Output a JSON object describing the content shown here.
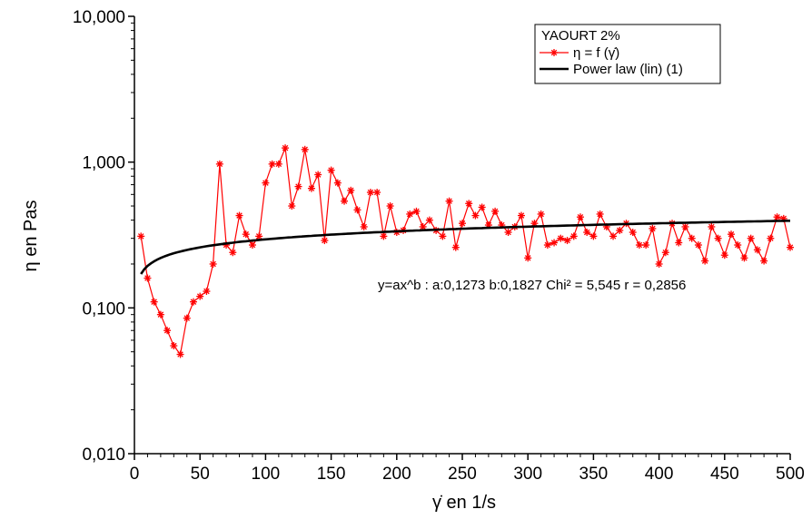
{
  "chart_data": {
    "type": "line",
    "scale_y": "log",
    "xlim": [
      0,
      500
    ],
    "ylim": [
      0.01,
      10
    ],
    "x_ticks": [
      0,
      50,
      100,
      150,
      200,
      250,
      300,
      350,
      400,
      450,
      500
    ],
    "x_tick_labels": [
      "0",
      "50",
      "100",
      "150",
      "200",
      "250",
      "300",
      "350",
      "400",
      "450",
      "500"
    ],
    "y_ticks": [
      0.01,
      0.1,
      1,
      10
    ],
    "y_tick_labels": [
      "0,010",
      "0,100",
      "1,000",
      "10,000"
    ],
    "xlabel": "γ̇ en 1/s",
    "ylabel": "η en Pas",
    "grid": false,
    "legend": {
      "title": "YAOURT 2%",
      "position": "top-right",
      "entries": [
        "η = f (γ̇)",
        "Power law (lin) (1)"
      ]
    },
    "annotation": "y=ax^b : a:0,1273 b:0,1827 Chi² = 5,545 r = 0,2856",
    "series": [
      {
        "name": "η = f (γ̇)",
        "color": "#ff0000",
        "marker": "asterisk",
        "x": [
          5,
          10,
          15,
          20,
          25,
          30,
          35,
          40,
          45,
          50,
          55,
          60,
          65,
          70,
          75,
          80,
          85,
          90,
          95,
          100,
          105,
          110,
          115,
          120,
          125,
          130,
          135,
          140,
          145,
          150,
          155,
          160,
          165,
          170,
          175,
          180,
          185,
          190,
          195,
          200,
          205,
          210,
          215,
          220,
          225,
          230,
          235,
          240,
          245,
          250,
          255,
          260,
          265,
          270,
          275,
          280,
          285,
          290,
          295,
          300,
          305,
          310,
          315,
          320,
          325,
          330,
          335,
          340,
          345,
          350,
          355,
          360,
          365,
          370,
          375,
          380,
          385,
          390,
          395,
          400,
          405,
          410,
          415,
          420,
          425,
          430,
          435,
          440,
          445,
          450,
          455,
          460,
          465,
          470,
          475,
          480,
          485,
          490,
          495,
          500
        ],
        "y": [
          0.31,
          0.16,
          0.11,
          0.09,
          0.07,
          0.055,
          0.048,
          0.085,
          0.11,
          0.12,
          0.13,
          0.2,
          0.97,
          0.27,
          0.24,
          0.43,
          0.32,
          0.27,
          0.31,
          0.72,
          0.97,
          0.97,
          1.25,
          0.5,
          0.68,
          1.22,
          0.66,
          0.82,
          0.29,
          0.88,
          0.72,
          0.54,
          0.64,
          0.47,
          0.36,
          0.62,
          0.62,
          0.31,
          0.5,
          0.33,
          0.34,
          0.44,
          0.46,
          0.36,
          0.4,
          0.34,
          0.31,
          0.54,
          0.26,
          0.38,
          0.52,
          0.43,
          0.49,
          0.37,
          0.46,
          0.37,
          0.33,
          0.36,
          0.43,
          0.22,
          0.38,
          0.44,
          0.27,
          0.28,
          0.3,
          0.29,
          0.31,
          0.42,
          0.33,
          0.31,
          0.44,
          0.36,
          0.31,
          0.34,
          0.38,
          0.33,
          0.27,
          0.27,
          0.35,
          0.2,
          0.24,
          0.38,
          0.28,
          0.36,
          0.3,
          0.27,
          0.21,
          0.36,
          0.3,
          0.23,
          0.32,
          0.27,
          0.22,
          0.3,
          0.25,
          0.21,
          0.3,
          0.42,
          0.41,
          0.26
        ]
      },
      {
        "name": "Power law (lin) (1)",
        "color": "#000000",
        "marker": "none",
        "model": "power",
        "a": 0.1273,
        "b": 0.1827,
        "x_range": [
          5,
          500
        ]
      }
    ]
  }
}
